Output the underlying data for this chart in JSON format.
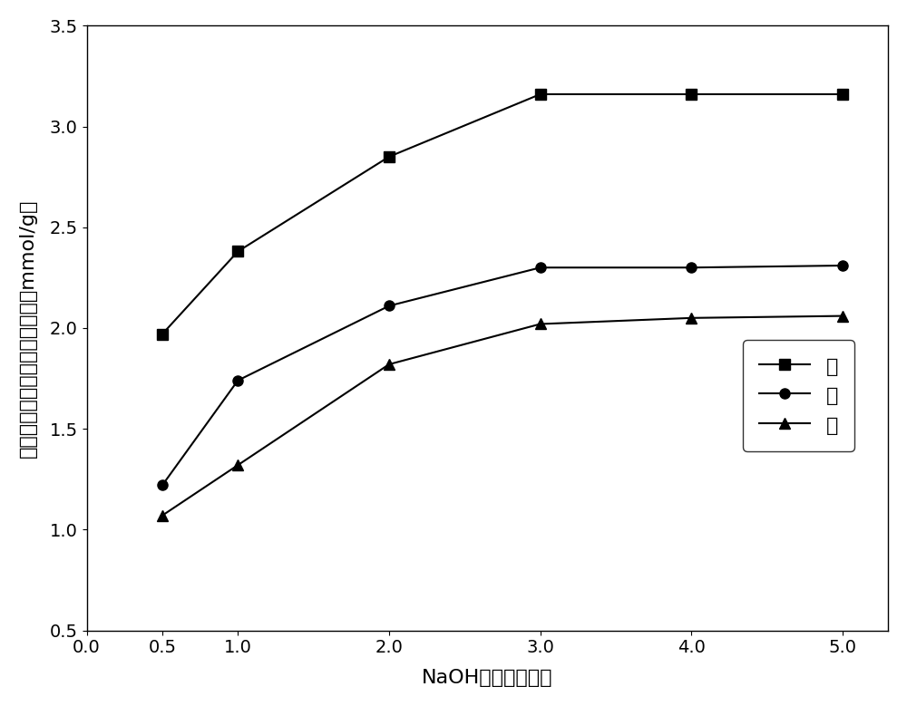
{
  "x": [
    0.5,
    1,
    2,
    3,
    4,
    5
  ],
  "copper": [
    1.97,
    2.38,
    2.85,
    3.16,
    3.16,
    3.16
  ],
  "cadmium": [
    1.22,
    1.74,
    2.11,
    2.3,
    2.3,
    2.31
  ],
  "zinc": [
    1.07,
    1.32,
    1.82,
    2.02,
    2.05,
    2.06
  ],
  "xlabel": "NaOH加入量（克）",
  "ylabel": "吸附材料对重金属的吸附能力（mmol/g）",
  "legend_copper": "铜",
  "legend_cadmium": "镉",
  "legend_zinc": "锌",
  "xlim": [
    0,
    5.3
  ],
  "ylim": [
    0.5,
    3.5
  ],
  "xticks": [
    0,
    0.5,
    1,
    2,
    3,
    4,
    5
  ],
  "yticks": [
    0.5,
    1.0,
    1.5,
    2.0,
    2.5,
    3.0,
    3.5
  ],
  "line_color": "#000000",
  "marker_square": "s",
  "marker_circle": "o",
  "marker_triangle": "^",
  "markersize": 8,
  "linewidth": 1.5,
  "background_color": "#ffffff",
  "legend_fontsize": 16,
  "axis_fontsize": 16,
  "tick_fontsize": 14
}
